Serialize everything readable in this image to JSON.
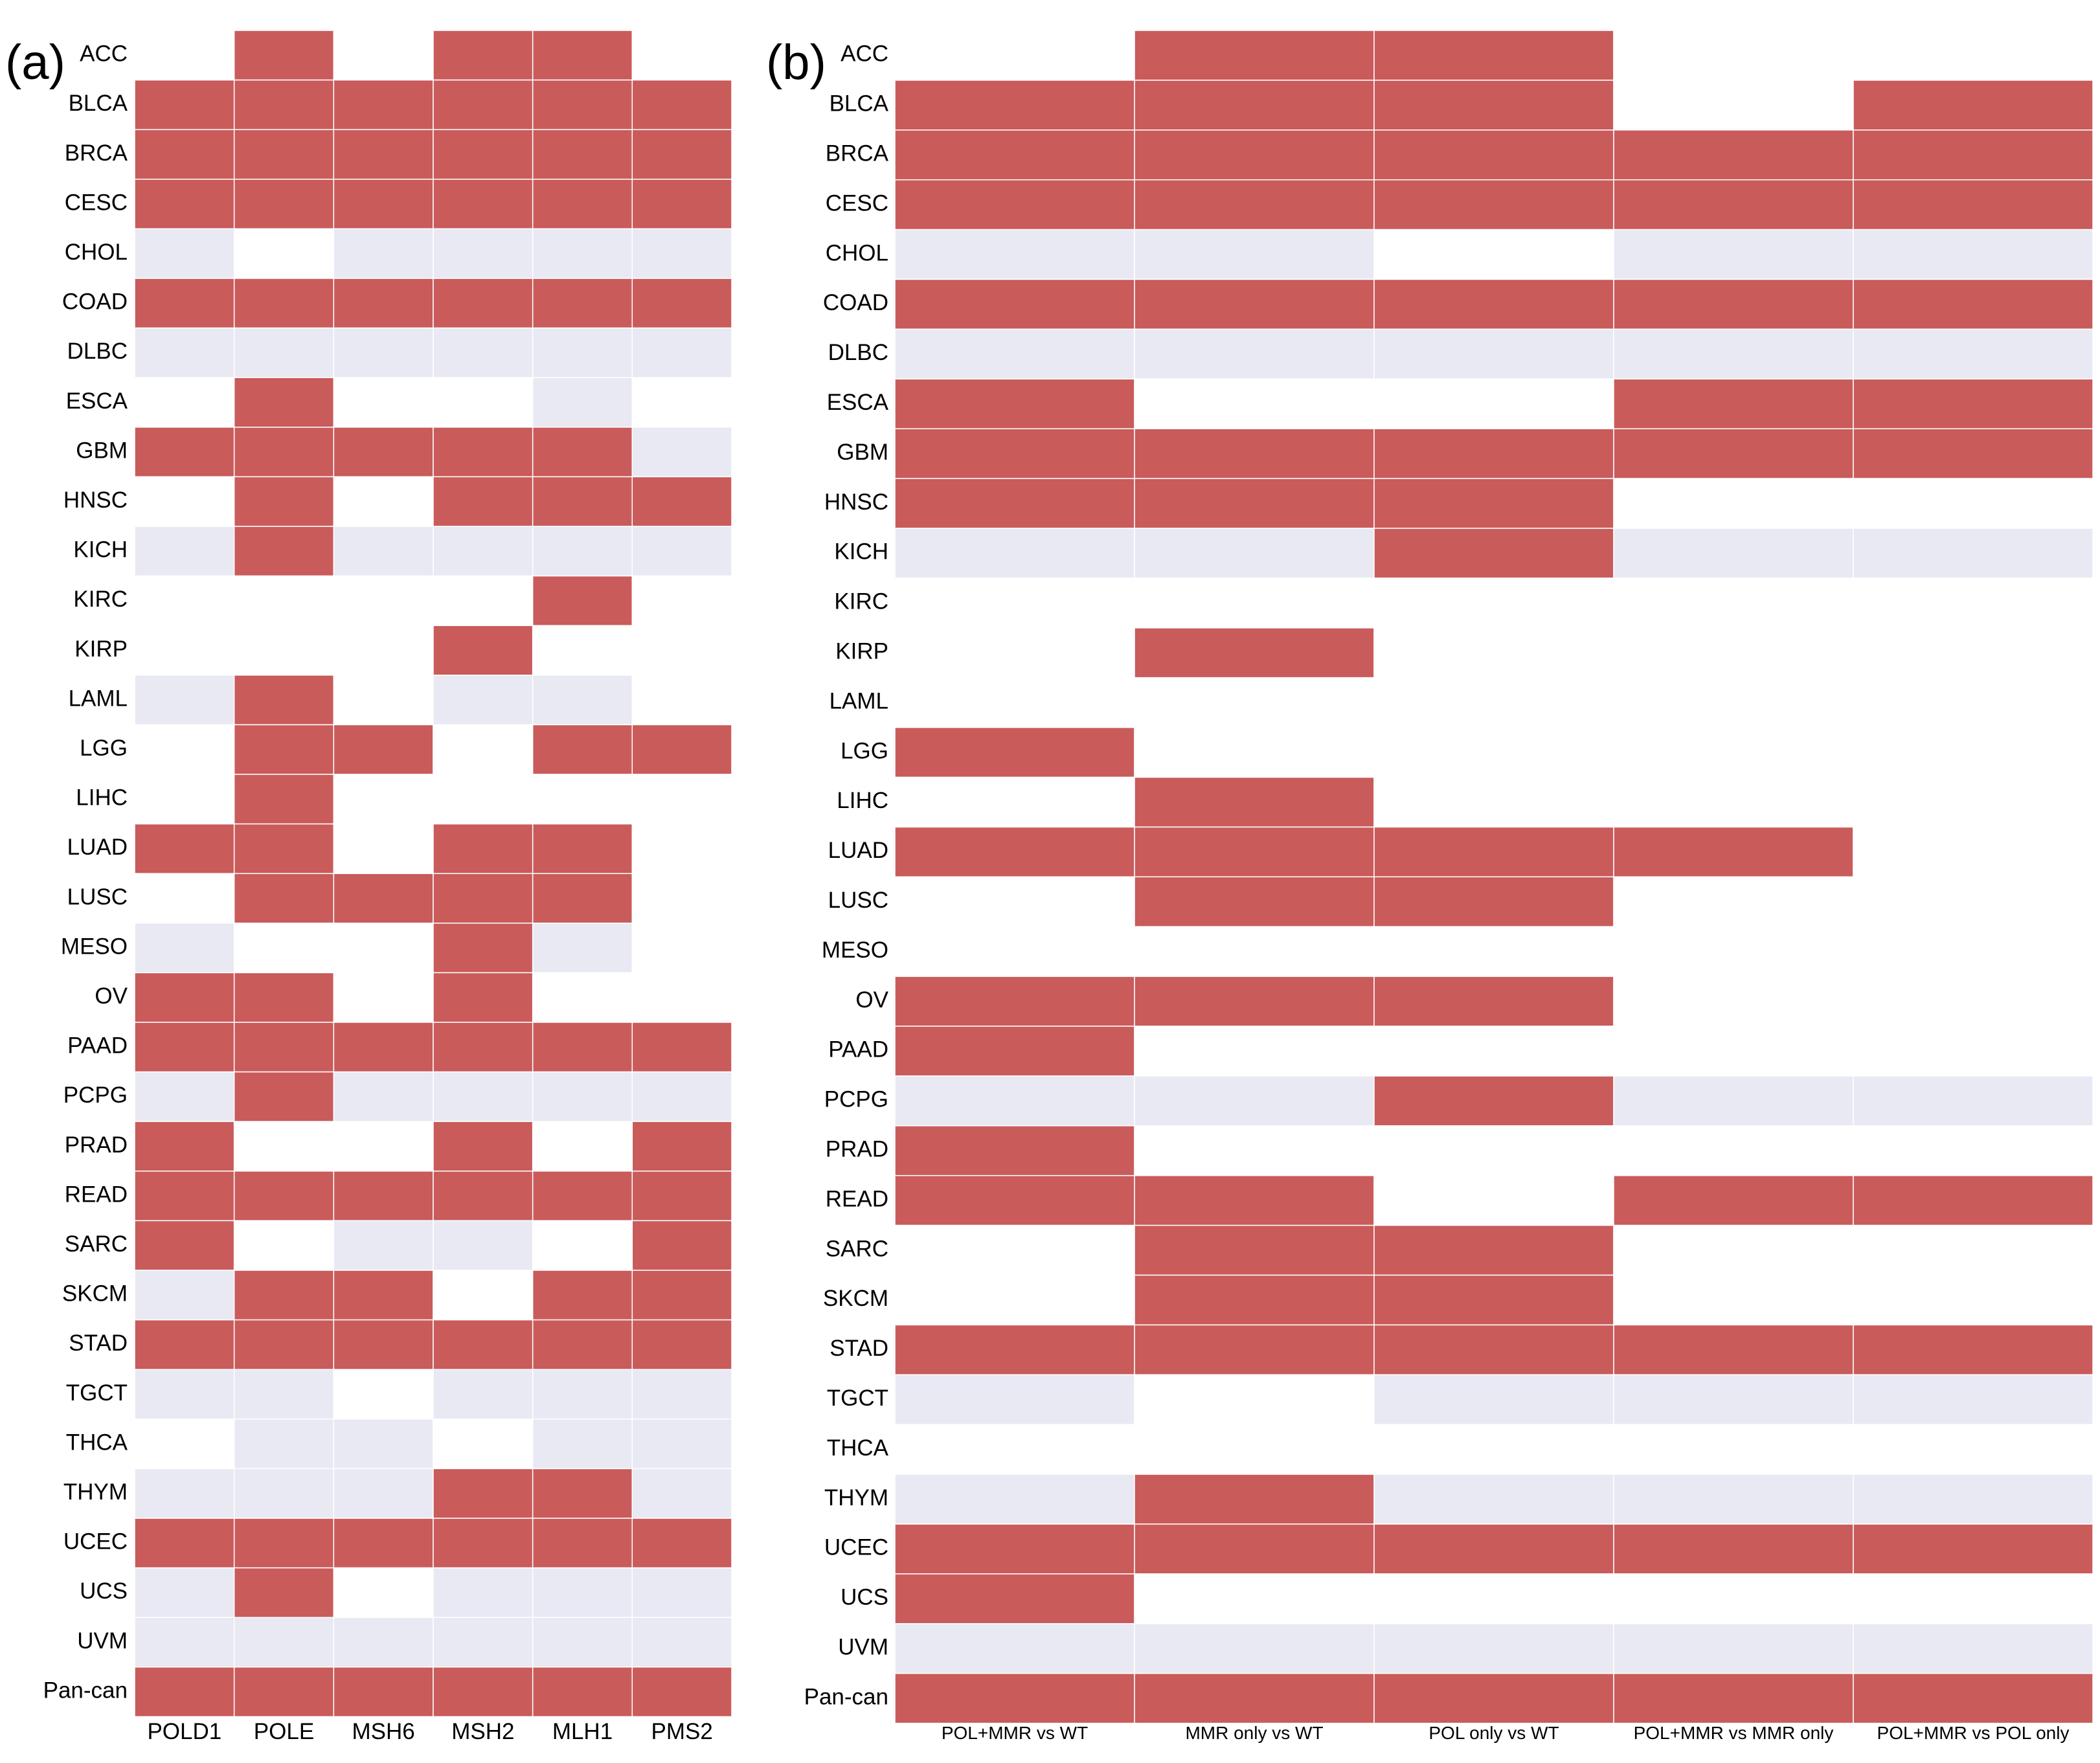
{
  "colors": {
    "significant": "#c95b5b",
    "not_significant": "#e8e9f3",
    "absent": "#ffffff"
  },
  "legend_meaning": {
    "2": "significant",
    "1": "not_significant",
    "0": "absent"
  },
  "chart_data": [
    {
      "type": "heatmap",
      "panel_label": "(a)",
      "title": "",
      "rows": [
        "ACC",
        "BLCA",
        "BRCA",
        "CESC",
        "CHOL",
        "COAD",
        "DLBC",
        "ESCA",
        "GBM",
        "HNSC",
        "KICH",
        "KIRC",
        "KIRP",
        "LAML",
        "LGG",
        "LIHC",
        "LUAD",
        "LUSC",
        "MESO",
        "OV",
        "PAAD",
        "PCPG",
        "PRAD",
        "READ",
        "SARC",
        "SKCM",
        "STAD",
        "TGCT",
        "THCA",
        "THYM",
        "UCEC",
        "UCS",
        "UVM",
        "Pan-can"
      ],
      "columns": [
        "POLD1",
        "POLE",
        "MSH6",
        "MSH2",
        "MLH1",
        "PMS2"
      ],
      "values": [
        [
          0,
          2,
          0,
          2,
          2,
          0
        ],
        [
          2,
          2,
          2,
          2,
          2,
          2
        ],
        [
          2,
          2,
          2,
          2,
          2,
          2
        ],
        [
          2,
          2,
          2,
          2,
          2,
          2
        ],
        [
          1,
          0,
          1,
          1,
          1,
          1
        ],
        [
          2,
          2,
          2,
          2,
          2,
          2
        ],
        [
          1,
          1,
          1,
          1,
          1,
          1
        ],
        [
          0,
          2,
          0,
          0,
          1,
          0
        ],
        [
          2,
          2,
          2,
          2,
          2,
          1
        ],
        [
          0,
          2,
          0,
          2,
          2,
          2
        ],
        [
          1,
          2,
          1,
          1,
          1,
          1
        ],
        [
          0,
          0,
          0,
          0,
          2,
          0
        ],
        [
          0,
          0,
          0,
          2,
          0,
          0
        ],
        [
          1,
          2,
          0,
          1,
          1,
          0
        ],
        [
          0,
          2,
          2,
          0,
          2,
          2
        ],
        [
          0,
          2,
          0,
          0,
          0,
          0
        ],
        [
          2,
          2,
          0,
          2,
          2,
          0
        ],
        [
          0,
          2,
          2,
          2,
          2,
          0
        ],
        [
          1,
          0,
          0,
          2,
          1,
          0
        ],
        [
          2,
          2,
          0,
          2,
          0,
          0
        ],
        [
          2,
          2,
          2,
          2,
          2,
          2
        ],
        [
          1,
          2,
          1,
          1,
          1,
          1
        ],
        [
          2,
          0,
          0,
          2,
          0,
          2
        ],
        [
          2,
          2,
          2,
          2,
          2,
          2
        ],
        [
          2,
          0,
          1,
          1,
          0,
          2
        ],
        [
          1,
          2,
          2,
          0,
          2,
          2
        ],
        [
          2,
          2,
          2,
          2,
          2,
          2
        ],
        [
          1,
          1,
          0,
          1,
          1,
          1
        ],
        [
          0,
          1,
          1,
          0,
          1,
          1
        ],
        [
          1,
          1,
          1,
          2,
          2,
          1
        ],
        [
          2,
          2,
          2,
          2,
          2,
          2
        ],
        [
          1,
          2,
          0,
          1,
          1,
          1
        ],
        [
          1,
          1,
          1,
          1,
          1,
          1
        ],
        [
          2,
          2,
          2,
          2,
          2,
          2
        ]
      ]
    },
    {
      "type": "heatmap",
      "panel_label": "(b)",
      "title": "",
      "rows": [
        "ACC",
        "BLCA",
        "BRCA",
        "CESC",
        "CHOL",
        "COAD",
        "DLBC",
        "ESCA",
        "GBM",
        "HNSC",
        "KICH",
        "KIRC",
        "KIRP",
        "LAML",
        "LGG",
        "LIHC",
        "LUAD",
        "LUSC",
        "MESO",
        "OV",
        "PAAD",
        "PCPG",
        "PRAD",
        "READ",
        "SARC",
        "SKCM",
        "STAD",
        "TGCT",
        "THCA",
        "THYM",
        "UCEC",
        "UCS",
        "UVM",
        "Pan-can"
      ],
      "columns": [
        "POL+MMR vs WT",
        "MMR only vs WT",
        "POL only vs WT",
        "POL+MMR vs MMR only",
        "POL+MMR vs POL only"
      ],
      "values": [
        [
          0,
          2,
          2,
          0,
          0
        ],
        [
          2,
          2,
          2,
          0,
          2
        ],
        [
          2,
          2,
          2,
          2,
          2
        ],
        [
          2,
          2,
          2,
          2,
          2
        ],
        [
          1,
          1,
          0,
          1,
          1
        ],
        [
          2,
          2,
          2,
          2,
          2
        ],
        [
          1,
          1,
          1,
          1,
          1
        ],
        [
          2,
          0,
          0,
          2,
          2
        ],
        [
          2,
          2,
          2,
          2,
          2
        ],
        [
          2,
          2,
          2,
          0,
          0
        ],
        [
          1,
          1,
          2,
          1,
          1
        ],
        [
          0,
          0,
          0,
          0,
          0
        ],
        [
          0,
          2,
          0,
          0,
          0
        ],
        [
          0,
          0,
          0,
          0,
          0
        ],
        [
          2,
          0,
          0,
          0,
          0
        ],
        [
          0,
          2,
          0,
          0,
          0
        ],
        [
          2,
          2,
          2,
          2,
          0
        ],
        [
          0,
          2,
          2,
          0,
          0
        ],
        [
          0,
          0,
          0,
          0,
          0
        ],
        [
          2,
          2,
          2,
          0,
          0
        ],
        [
          2,
          0,
          0,
          0,
          0
        ],
        [
          1,
          1,
          2,
          1,
          1
        ],
        [
          2,
          0,
          0,
          0,
          0
        ],
        [
          2,
          2,
          0,
          2,
          2
        ],
        [
          0,
          2,
          2,
          0,
          0
        ],
        [
          0,
          2,
          2,
          0,
          0
        ],
        [
          2,
          2,
          2,
          2,
          2
        ],
        [
          1,
          0,
          1,
          1,
          1
        ],
        [
          0,
          0,
          0,
          0,
          0
        ],
        [
          1,
          2,
          1,
          1,
          1
        ],
        [
          2,
          2,
          2,
          2,
          2
        ],
        [
          2,
          0,
          0,
          0,
          0
        ],
        [
          1,
          1,
          1,
          1,
          1
        ],
        [
          2,
          2,
          2,
          2,
          2
        ]
      ]
    }
  ]
}
